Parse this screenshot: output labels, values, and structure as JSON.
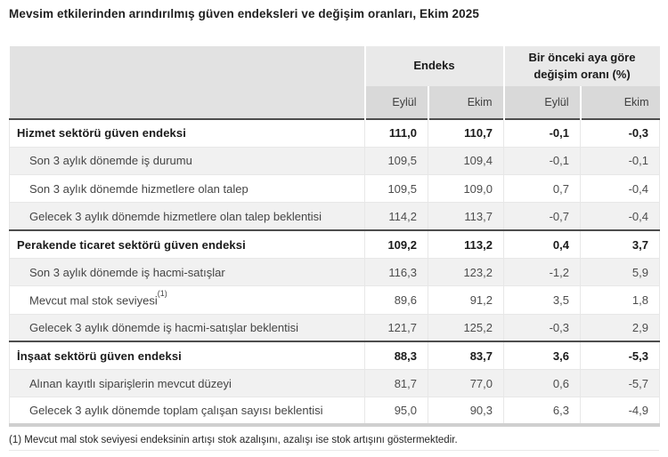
{
  "title": "Mevsim etkilerinden arındırılmış güven endeksleri ve değişim oranları, Ekim 2025",
  "table": {
    "col_groups": [
      {
        "label": "Endeks"
      },
      {
        "label": "Bir önceki aya göre değişim oranı (%)"
      }
    ],
    "sub_headers": [
      "Eylül",
      "Ekim",
      "Eylül",
      "Ekim"
    ],
    "rows": [
      {
        "label": "Hizmet sektörü güven endeksi",
        "bold": true,
        "sup": "",
        "values": [
          "111,0",
          "110,7",
          "-0,1",
          "-0,3"
        ]
      },
      {
        "label": "Son 3 aylık dönemde iş durumu",
        "bold": false,
        "sup": "",
        "values": [
          "109,5",
          "109,4",
          "-0,1",
          "-0,1"
        ]
      },
      {
        "label": "Son 3 aylık dönemde hizmetlere olan talep",
        "bold": false,
        "sup": "",
        "values": [
          "109,5",
          "109,0",
          "0,7",
          "-0,4"
        ]
      },
      {
        "label": "Gelecek 3 aylık dönemde hizmetlere olan talep beklentisi",
        "bold": false,
        "sup": "",
        "values": [
          "114,2",
          "113,7",
          "-0,7",
          "-0,4"
        ]
      },
      {
        "label": "Perakende ticaret sektörü güven endeksi",
        "bold": true,
        "sup": "",
        "values": [
          "109,2",
          "113,2",
          "0,4",
          "3,7"
        ]
      },
      {
        "label": "Son 3 aylık dönemde iş hacmi-satışlar",
        "bold": false,
        "sup": "",
        "values": [
          "116,3",
          "123,2",
          "-1,2",
          "5,9"
        ]
      },
      {
        "label": "Mevcut mal stok seviyesi",
        "bold": false,
        "sup": "(1)",
        "values": [
          "89,6",
          "91,2",
          "3,5",
          "1,8"
        ]
      },
      {
        "label": "Gelecek 3 aylık dönemde iş hacmi-satışlar beklentisi",
        "bold": false,
        "sup": "",
        "values": [
          "121,7",
          "125,2",
          "-0,3",
          "2,9"
        ]
      },
      {
        "label": "İnşaat sektörü güven endeksi",
        "bold": true,
        "sup": "",
        "values": [
          "88,3",
          "83,7",
          "3,6",
          "-5,3"
        ]
      },
      {
        "label": "Alınan kayıtlı siparişlerin mevcut düzeyi",
        "bold": false,
        "sup": "",
        "values": [
          "81,7",
          "77,0",
          "0,6",
          "-5,7"
        ]
      },
      {
        "label": "Gelecek 3 aylık dönemde toplam çalışan sayısı beklentisi",
        "bold": false,
        "sup": "",
        "values": [
          "95,0",
          "90,3",
          "6,3",
          "-4,9"
        ]
      }
    ]
  },
  "footnote": "(1) Mevcut mal stok seviyesi endeksinin artışı stok azalışını, azalışı ise stok artışını göstermektedir.",
  "colors": {
    "header_group_bg": "#e9e9e9",
    "header_sub_bg": "#d9d9d9",
    "corner_bg": "#e2e2e2",
    "stripe_bg": "#f1f1f1",
    "section_rule": "#4d4d4d",
    "table_bottom_rule": "#cfcfcf"
  },
  "chart_data": {
    "type": "table",
    "title": "Mevsim etkilerinden arındırılmış güven endeksleri ve değişim oranları, Ekim 2025",
    "column_groups": [
      "Endeks",
      "Bir önceki aya göre değişim oranı (%)"
    ],
    "columns": [
      "",
      "Eylül",
      "Ekim",
      "Eylül",
      "Ekim"
    ],
    "rows": [
      {
        "label": "Hizmet sektörü güven endeksi",
        "section_header": true,
        "endeks_eylul": 111.0,
        "endeks_ekim": 110.7,
        "degisim_eylul": -0.1,
        "degisim_ekim": -0.3
      },
      {
        "label": "Son 3 aylık dönemde iş durumu",
        "section_header": false,
        "endeks_eylul": 109.5,
        "endeks_ekim": 109.4,
        "degisim_eylul": -0.1,
        "degisim_ekim": -0.1
      },
      {
        "label": "Son 3 aylık dönemde hizmetlere olan talep",
        "section_header": false,
        "endeks_eylul": 109.5,
        "endeks_ekim": 109.0,
        "degisim_eylul": 0.7,
        "degisim_ekim": -0.4
      },
      {
        "label": "Gelecek 3 aylık dönemde hizmetlere olan talep beklentisi",
        "section_header": false,
        "endeks_eylul": 114.2,
        "endeks_ekim": 113.7,
        "degisim_eylul": -0.7,
        "degisim_ekim": -0.4
      },
      {
        "label": "Perakende ticaret sektörü güven endeksi",
        "section_header": true,
        "endeks_eylul": 109.2,
        "endeks_ekim": 113.2,
        "degisim_eylul": 0.4,
        "degisim_ekim": 3.7
      },
      {
        "label": "Son 3 aylık dönemde iş hacmi-satışlar",
        "section_header": false,
        "endeks_eylul": 116.3,
        "endeks_ekim": 123.2,
        "degisim_eylul": -1.2,
        "degisim_ekim": 5.9
      },
      {
        "label": "Mevcut mal stok seviyesi (1)",
        "section_header": false,
        "endeks_eylul": 89.6,
        "endeks_ekim": 91.2,
        "degisim_eylul": 3.5,
        "degisim_ekim": 1.8
      },
      {
        "label": "Gelecek 3 aylık dönemde iş hacmi-satışlar beklentisi",
        "section_header": false,
        "endeks_eylul": 121.7,
        "endeks_ekim": 125.2,
        "degisim_eylul": -0.3,
        "degisim_ekim": 2.9
      },
      {
        "label": "İnşaat sektörü güven endeksi",
        "section_header": true,
        "endeks_eylul": 88.3,
        "endeks_ekim": 83.7,
        "degisim_eylul": 3.6,
        "degisim_ekim": -5.3
      },
      {
        "label": "Alınan kayıtlı siparişlerin mevcut düzeyi",
        "section_header": false,
        "endeks_eylul": 81.7,
        "endeks_ekim": 77.0,
        "degisim_eylul": 0.6,
        "degisim_ekim": -5.7
      },
      {
        "label": "Gelecek 3 aylık dönemde toplam çalışan sayısı beklentisi",
        "section_header": false,
        "endeks_eylul": 95.0,
        "endeks_ekim": 90.3,
        "degisim_eylul": 6.3,
        "degisim_ekim": -4.9
      }
    ],
    "notes": [
      "(1) Mevcut mal stok seviyesi endeksinin artışı stok azalışını, azalışı ise stok artışını göstermektedir."
    ]
  }
}
